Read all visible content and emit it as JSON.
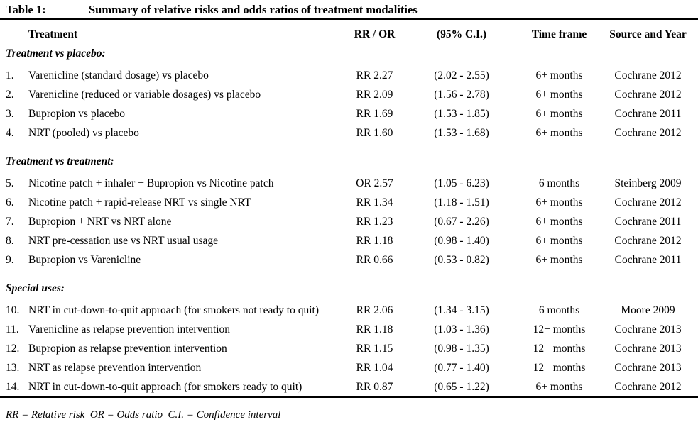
{
  "page": {
    "title_label": "Table 1:",
    "title_text": "Summary of relative risks and odds ratios of treatment modalities",
    "footnote": "RR = Relative risk  OR = Odds ratio  C.I. = Confidence interval"
  },
  "colors": {
    "text": "#000000",
    "background": "#ffffff",
    "rule": "#000000"
  },
  "table": {
    "columns": [
      "Treatment",
      "RR / OR",
      "(95% C.I.)",
      "Time frame",
      "Source and Year"
    ],
    "sections": [
      {
        "heading": "Treatment vs placebo:",
        "rows": [
          {
            "num": "1.",
            "treatment": "Varenicline (standard dosage) vs placebo",
            "rr_or": "RR 2.27",
            "ci": "(2.02 - 2.55)",
            "time_frame": "6+ months",
            "source": "Cochrane 2012"
          },
          {
            "num": "2.",
            "treatment": "Varenicline (reduced or variable dosages) vs placebo",
            "rr_or": "RR 2.09",
            "ci": "(1.56 - 2.78)",
            "time_frame": "6+ months",
            "source": "Cochrane 2012"
          },
          {
            "num": "3.",
            "treatment": "Bupropion vs placebo",
            "rr_or": "RR 1.69",
            "ci": "(1.53 - 1.85)",
            "time_frame": "6+ months",
            "source": "Cochrane 2011"
          },
          {
            "num": "4.",
            "treatment": "NRT (pooled) vs placebo",
            "rr_or": "RR 1.60",
            "ci": "(1.53 - 1.68)",
            "time_frame": "6+ months",
            "source": "Cochrane 2012"
          }
        ]
      },
      {
        "heading": "Treatment vs treatment:",
        "rows": [
          {
            "num": "5.",
            "treatment": "Nicotine patch + inhaler + Bupropion vs Nicotine patch",
            "rr_or": "OR 2.57",
            "ci": "(1.05 - 6.23)",
            "time_frame": "6 months",
            "source": "Steinberg 2009"
          },
          {
            "num": "6.",
            "treatment": "Nicotine patch + rapid-release NRT vs single NRT",
            "rr_or": "RR 1.34",
            "ci": "(1.18 - 1.51)",
            "time_frame": "6+ months",
            "source": "Cochrane 2012"
          },
          {
            "num": "7.",
            "treatment": "Bupropion + NRT vs NRT alone",
            "rr_or": "RR 1.23",
            "ci": "(0.67 - 2.26)",
            "time_frame": "6+ months",
            "source": "Cochrane 2011"
          },
          {
            "num": "8.",
            "treatment": "NRT pre-cessation use vs NRT usual usage",
            "rr_or": "RR 1.18",
            "ci": "(0.98 - 1.40)",
            "time_frame": "6+ months",
            "source": "Cochrane 2012"
          },
          {
            "num": "9.",
            "treatment": "Bupropion vs Varenicline",
            "rr_or": "RR 0.66",
            "ci": "(0.53 - 0.82)",
            "time_frame": "6+ months",
            "source": "Cochrane 2011"
          }
        ]
      },
      {
        "heading": "Special uses:",
        "rows": [
          {
            "num": "10.",
            "treatment": "NRT in cut-down-to-quit approach (for smokers not ready to quit)",
            "rr_or": "RR 2.06",
            "ci": "(1.34 - 3.15)",
            "time_frame": "6 months",
            "source": "Moore 2009"
          },
          {
            "num": "11.",
            "treatment": "Varenicline as relapse prevention intervention",
            "rr_or": "RR 1.18",
            "ci": "(1.03 - 1.36)",
            "time_frame": "12+ months",
            "source": "Cochrane 2013"
          },
          {
            "num": "12.",
            "treatment": "Bupropion as relapse prevention intervention",
            "rr_or": "RR 1.15",
            "ci": "(0.98 - 1.35)",
            "time_frame": "12+ months",
            "source": "Cochrane 2013"
          },
          {
            "num": "13.",
            "treatment": "NRT as relapse prevention intervention",
            "rr_or": "RR 1.04",
            "ci": "(0.77 - 1.40)",
            "time_frame": "12+ months",
            "source": "Cochrane 2013"
          },
          {
            "num": "14.",
            "treatment": "NRT in cut-down-to-quit approach (for smokers ready to quit)",
            "rr_or": "RR 0.87",
            "ci": "(0.65 - 1.22)",
            "time_frame": "6+ months",
            "source": "Cochrane 2012"
          }
        ]
      }
    ]
  }
}
